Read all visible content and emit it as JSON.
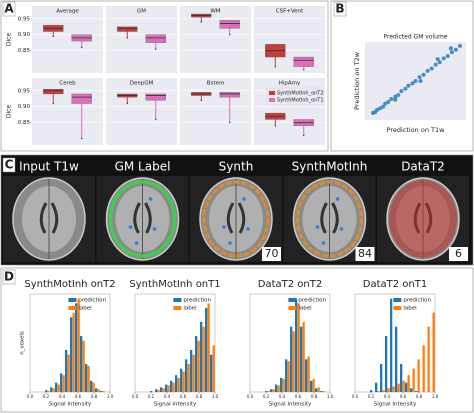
{
  "panel_a": {
    "label": "A",
    "ylabel": "Dice",
    "ylim": [
      0.78,
      0.99
    ],
    "yticks": [
      0.85,
      {
        "value": 0.9,
        "label": "0.90"
      },
      0.95
    ],
    "series": [
      {
        "name": "SynthMotInh_onT2",
        "color": "#c43c3c"
      },
      {
        "name": "SynthMotInh_onT1",
        "color": "#d86fb8"
      }
    ],
    "legend": "upper right",
    "subplots": [
      {
        "title": "Average",
        "stats": [
          {
            "median": 0.92,
            "q1": 0.91,
            "q3": 0.93,
            "min": 0.895
          },
          {
            "median": 0.89,
            "q1": 0.88,
            "q3": 0.9,
            "min": 0.86
          }
        ]
      },
      {
        "title": "GM",
        "stats": [
          {
            "median": 0.92,
            "q1": 0.91,
            "q3": 0.925,
            "min": 0.89
          },
          {
            "median": 0.89,
            "q1": 0.875,
            "q3": 0.9,
            "min": 0.855
          }
        ]
      },
      {
        "title": "WM",
        "stats": [
          {
            "median": 0.96,
            "q1": 0.955,
            "q3": 0.965,
            "min": 0.94
          },
          {
            "median": 0.935,
            "q1": 0.92,
            "q3": 0.945,
            "min": 0.9
          }
        ]
      },
      {
        "title": "CSF+Vent",
        "stats": [
          {
            "median": 0.85,
            "q1": 0.83,
            "q3": 0.87,
            "min": 0.8
          },
          {
            "median": 0.82,
            "q1": 0.8,
            "q3": 0.83,
            "min": 0.79
          }
        ]
      },
      {
        "title": "Cereb",
        "stats": [
          {
            "median": 0.95,
            "q1": 0.94,
            "q3": 0.955,
            "min": 0.91
          },
          {
            "median": 0.93,
            "q1": 0.91,
            "q3": 0.94,
            "min": 0.8
          }
        ]
      },
      {
        "title": "DeepGM",
        "stats": [
          {
            "median": 0.935,
            "q1": 0.93,
            "q3": 0.94,
            "min": 0.91
          },
          {
            "median": 0.935,
            "q1": 0.92,
            "q3": 0.94,
            "min": 0.86
          }
        ]
      },
      {
        "title": "Bstem",
        "stats": [
          {
            "median": 0.94,
            "q1": 0.935,
            "q3": 0.945,
            "min": 0.92
          },
          {
            "median": 0.94,
            "q1": 0.93,
            "q3": 0.945,
            "min": 0.85
          }
        ]
      },
      {
        "title": "HipAmy",
        "stats": [
          {
            "median": 0.87,
            "q1": 0.86,
            "q3": 0.88,
            "min": 0.84
          },
          {
            "median": 0.85,
            "q1": 0.84,
            "q3": 0.86,
            "min": 0.81
          }
        ]
      }
    ]
  },
  "panel_b": {
    "label": "B",
    "title": "Predicted GM volume",
    "xlabel": "Prediction on T1w",
    "ylabel": "Prediction on T2w",
    "xlim": [
      0,
      1
    ],
    "ylim": [
      0,
      1
    ],
    "color": "#1f77b4",
    "x": [
      0.08,
      0.1,
      0.12,
      0.15,
      0.18,
      0.2,
      0.23,
      0.26,
      0.3,
      0.33,
      0.36,
      0.4,
      0.43,
      0.47,
      0.5,
      0.54,
      0.58,
      0.62,
      0.66,
      0.7,
      0.74,
      0.78,
      0.82,
      0.86,
      0.9,
      0.94,
      0.55,
      0.72,
      0.85,
      0.3
    ],
    "y": [
      0.09,
      0.1,
      0.13,
      0.15,
      0.17,
      0.21,
      0.23,
      0.27,
      0.3,
      0.32,
      0.37,
      0.4,
      0.44,
      0.47,
      0.5,
      0.55,
      0.58,
      0.63,
      0.66,
      0.71,
      0.74,
      0.79,
      0.82,
      0.87,
      0.9,
      0.95,
      0.5,
      0.78,
      0.92,
      0.26
    ]
  },
  "panel_c": {
    "label": "C",
    "images": [
      {
        "title": "Input T1w"
      },
      {
        "title": "GM Label"
      },
      {
        "title": "Synth",
        "score": 70
      },
      {
        "title": "SynthMotInh",
        "score": 84
      },
      {
        "title": "DataT2",
        "score": 6
      }
    ]
  },
  "panel_d": {
    "label": "D",
    "xlabel": "Signal Intensity",
    "ylabel": "n_voxels",
    "bins": [
      0,
      0.0625,
      0.125,
      0.1875,
      0.25,
      0.3125,
      0.375,
      0.4375,
      0.5,
      0.5625,
      0.625,
      0.6875,
      0.75,
      0.8125,
      0.875,
      0.9375,
      1
    ],
    "xlim": [
      0,
      1
    ],
    "ylim": [
      0,
      105
    ],
    "xticks": [
      {
        "value": 0,
        "label": "0.0"
      },
      0.2,
      0.4,
      0.6,
      0.8,
      {
        "value": 1,
        "label": "1.0"
      }
    ],
    "plots": [
      {
        "title": "SynthMotInh onT2",
        "series": [
          {
            "name": "prediction",
            "color": "#1f77b4",
            "values": [
              0,
              0,
              0,
              2,
              5,
              10,
              20,
              45,
              80,
              95,
              60,
              30,
              12,
              4,
              1,
              0
            ]
          },
          {
            "name": "label",
            "color": "#ff7f0e",
            "values": [
              0,
              0,
              0,
              1,
              4,
              8,
              18,
              40,
              85,
              100,
              55,
              28,
              10,
              3,
              1,
              0
            ]
          }
        ]
      },
      {
        "title": "SynthMotInh onT1",
        "series": [
          {
            "name": "prediction",
            "color": "#1f77b4",
            "values": [
              0,
              0,
              0,
              1,
              3,
              5,
              8,
              12,
              18,
              25,
              35,
              45,
              60,
              75,
              90,
              40
            ]
          },
          {
            "name": "label",
            "color": "#ff7f0e",
            "values": [
              0,
              0,
              0,
              0,
              2,
              4,
              7,
              10,
              15,
              22,
              30,
              40,
              55,
              70,
              95,
              50
            ]
          }
        ]
      },
      {
        "title": "DataT2 onT2",
        "series": [
          {
            "name": "prediction",
            "color": "#1f77b4",
            "values": [
              0,
              0,
              0,
              1,
              3,
              8,
              15,
              35,
              70,
              100,
              70,
              35,
              12,
              4,
              1,
              0
            ]
          },
          {
            "name": "label",
            "color": "#ff7f0e",
            "values": [
              0,
              0,
              0,
              1,
              3,
              7,
              14,
              33,
              65,
              95,
              75,
              38,
              14,
              5,
              1,
              0
            ]
          }
        ]
      },
      {
        "title": "DataT2 onT1",
        "series": [
          {
            "name": "prediction",
            "color": "#1f77b4",
            "values": [
              0,
              0,
              0,
              2,
              10,
              30,
              60,
              100,
              70,
              30,
              10,
              4,
              1,
              0,
              0,
              0
            ]
          },
          {
            "name": "label",
            "color": "#ff7f0e",
            "values": [
              0,
              0,
              0,
              0,
              1,
              2,
              4,
              6,
              9,
              12,
              18,
              25,
              35,
              50,
              70,
              85
            ]
          }
        ]
      }
    ]
  }
}
